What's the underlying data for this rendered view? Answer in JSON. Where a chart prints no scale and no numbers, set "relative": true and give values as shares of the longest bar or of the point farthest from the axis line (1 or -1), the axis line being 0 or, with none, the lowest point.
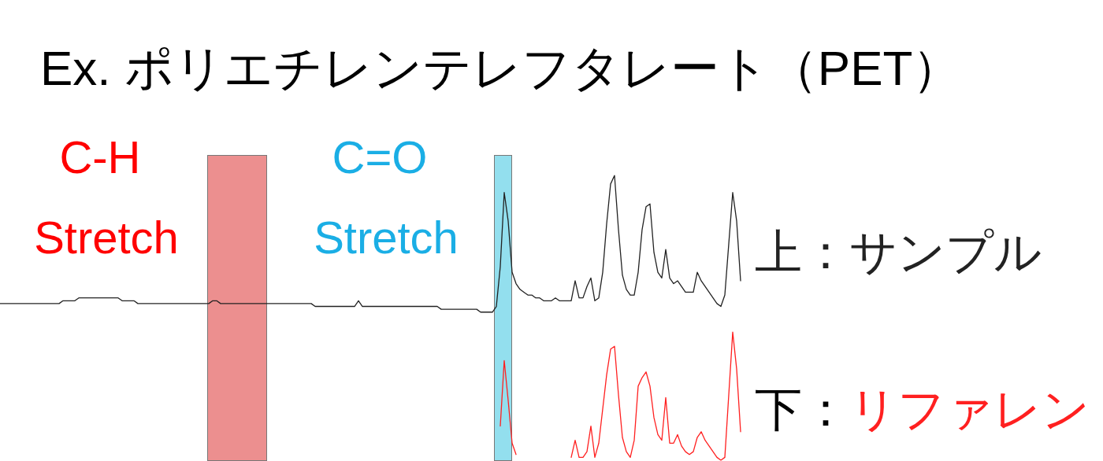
{
  "chart_data": {
    "type": "line",
    "relative": true,
    "title": "Ex. ポリエチレンテレフタレート（PET）",
    "categories": [
      null,
      null,
      null,
      null,
      null,
      null,
      null,
      null,
      null,
      null,
      null,
      null,
      null,
      null,
      null,
      null,
      null,
      null,
      null,
      null,
      null,
      null,
      null,
      null,
      null,
      null,
      null,
      null,
      null,
      null,
      null,
      null,
      null,
      null,
      null,
      null,
      null,
      null,
      null,
      null,
      null,
      null,
      null,
      null,
      null,
      null,
      null,
      null,
      null,
      null,
      null,
      null,
      null,
      null,
      null,
      null,
      null,
      null,
      null,
      null,
      null,
      null,
      null,
      null,
      null,
      null,
      null,
      null,
      null,
      null,
      null,
      null,
      null,
      null,
      null,
      null,
      null,
      null,
      null,
      null,
      null,
      null,
      null,
      null,
      null,
      null,
      null,
      null,
      null,
      null,
      null,
      null,
      null,
      null,
      null,
      null,
      null,
      null,
      null,
      null,
      null,
      null,
      null,
      null,
      null,
      null,
      null,
      null,
      null,
      null,
      null,
      null,
      null,
      null,
      null,
      null,
      null,
      null,
      null,
      null,
      null,
      null,
      null,
      null,
      null,
      null,
      null,
      null,
      null,
      null,
      null,
      null,
      null,
      null,
      null,
      null,
      null,
      null,
      null,
      null,
      null,
      null,
      null,
      null,
      null,
      null,
      null,
      null,
      null,
      null,
      null,
      null,
      null,
      null,
      null,
      null,
      null,
      null,
      null,
      null,
      null,
      null,
      null,
      null,
      null,
      null,
      null,
      null,
      null,
      null,
      null,
      null,
      null,
      null,
      null,
      null,
      null,
      null,
      null,
      null,
      null,
      null,
      null,
      null,
      null,
      null,
      null,
      null,
      null
    ],
    "series": [
      {
        "color": "#222222",
        "values": [
          0.55,
          0.55,
          0.55,
          0.55,
          0.55,
          0.55,
          0.55,
          0.55,
          0.55,
          0.55,
          0.55,
          0.55,
          0.55,
          0.55,
          0.55,
          0.55,
          0.56,
          0.56,
          0.56,
          0.56,
          0.57,
          0.57,
          0.57,
          0.57,
          0.57,
          0.57,
          0.57,
          0.57,
          0.57,
          0.57,
          0.57,
          0.56,
          0.56,
          0.56,
          0.56,
          0.55,
          0.55,
          0.55,
          0.55,
          0.55,
          0.55,
          0.55,
          0.55,
          0.55,
          0.55,
          0.55,
          0.55,
          0.55,
          0.55,
          0.55,
          0.55,
          0.55,
          0.55,
          0.55,
          0.56,
          0.56,
          0.55,
          0.55,
          0.55,
          0.55,
          0.55,
          0.55,
          0.55,
          0.55,
          0.55,
          0.55,
          0.55,
          0.55,
          0.55,
          0.55,
          0.55,
          0.55,
          0.55,
          0.55,
          0.55,
          0.55,
          0.55,
          0.55,
          0.55,
          0.55,
          0.54,
          0.54,
          0.54,
          0.54,
          0.54,
          0.54,
          0.54,
          0.54,
          0.54,
          0.54,
          0.54,
          0.56,
          0.54,
          0.54,
          0.54,
          0.54,
          0.54,
          0.54,
          0.54,
          0.54,
          0.54,
          0.54,
          0.54,
          0.54,
          0.54,
          0.54,
          0.54,
          0.54,
          0.54,
          0.54,
          0.54,
          0.54,
          0.53,
          0.53,
          0.53,
          0.53,
          0.53,
          0.53,
          0.53,
          0.53,
          0.53,
          0.53,
          0.52,
          0.52,
          0.52,
          0.52,
          0.54,
          0.68,
          0.94,
          0.84,
          0.66,
          0.62,
          0.6,
          0.59,
          0.58,
          0.58,
          0.57,
          0.57,
          0.56,
          0.56,
          0.56,
          0.57,
          0.56,
          0.56,
          0.56,
          0.56,
          0.63,
          0.57,
          0.57,
          0.61,
          0.64,
          0.56,
          0.57,
          0.66,
          0.83,
          0.97,
          1,
          0.81,
          0.65,
          0.6,
          0.58,
          0.58,
          0.66,
          0.81,
          0.89,
          0.9,
          0.73,
          0.66,
          0.64,
          0.74,
          0.64,
          0.62,
          0.63,
          0.61,
          0.59,
          0.59,
          0.59,
          0.66,
          0.63,
          0.61,
          0.59,
          0.57,
          0.55,
          0.54,
          0.58,
          0.76,
          0.94,
          0.84,
          0.63
        ]
      },
      {
        "color": "#ff2020",
        "values": [
          null,
          null,
          null,
          null,
          null,
          null,
          null,
          null,
          null,
          null,
          null,
          null,
          null,
          null,
          null,
          null,
          null,
          null,
          null,
          null,
          null,
          null,
          null,
          null,
          null,
          null,
          null,
          null,
          null,
          null,
          null,
          null,
          null,
          null,
          null,
          null,
          null,
          null,
          null,
          null,
          null,
          null,
          null,
          null,
          null,
          null,
          null,
          null,
          null,
          null,
          null,
          null,
          null,
          null,
          null,
          null,
          null,
          null,
          null,
          null,
          null,
          null,
          null,
          null,
          null,
          null,
          null,
          null,
          null,
          null,
          null,
          null,
          null,
          null,
          null,
          null,
          null,
          null,
          null,
          null,
          null,
          null,
          null,
          null,
          null,
          null,
          null,
          null,
          null,
          null,
          null,
          null,
          null,
          null,
          null,
          null,
          null,
          null,
          null,
          null,
          null,
          null,
          null,
          null,
          null,
          null,
          null,
          null,
          null,
          null,
          null,
          null,
          null,
          null,
          null,
          null,
          null,
          null,
          null,
          null,
          null,
          null,
          null,
          null,
          null,
          null,
          null,
          0.12,
          0.35,
          0.21,
          0.06,
          0.02,
          null,
          null,
          null,
          null,
          null,
          null,
          null,
          null,
          null,
          null,
          null,
          null,
          null,
          0.01,
          0.07,
          0.01,
          0.01,
          0.03,
          0.12,
          0.01,
          0.06,
          0.18,
          0.3,
          0.39,
          0.4,
          0.23,
          0.08,
          0.03,
          0.01,
          0.07,
          0.26,
          0.29,
          0.31,
          0.26,
          0.15,
          0.09,
          0.07,
          0.22,
          0.06,
          0.06,
          0.09,
          0.05,
          0.03,
          0.02,
          0.03,
          0.08,
          0.1,
          0.07,
          0.05,
          0.03,
          0.01,
          0,
          0.01,
          0.23,
          0.45,
          0.32,
          0.1
        ]
      }
    ],
    "annotations": [
      "C-H Stretch",
      "C=O Stretch",
      "上：サンプル",
      "下：リファレン"
    ]
  }
}
